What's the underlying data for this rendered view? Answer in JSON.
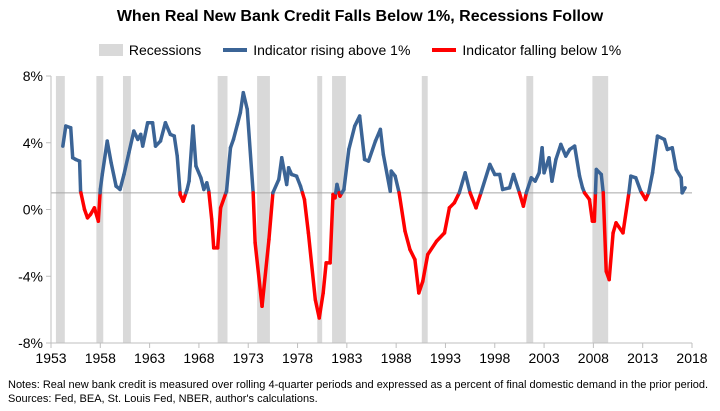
{
  "chart_data": {
    "type": "line",
    "title": "When Real New Bank Credit Falls Below 1%, Recessions Follow",
    "xlabel": "",
    "ylabel": "",
    "xlim": [
      1953,
      2018
    ],
    "ylim": [
      -8,
      8
    ],
    "x_ticks": [
      "1953",
      "1958",
      "1963",
      "1968",
      "1973",
      "1978",
      "1983",
      "1988",
      "1993",
      "1998",
      "2003",
      "2008",
      "2013",
      "2018"
    ],
    "y_ticks": [
      "8%",
      "4%",
      "0%",
      "-4%",
      "-8%"
    ],
    "y_tick_values": [
      8,
      4,
      0,
      -4,
      -8
    ],
    "threshold": 1,
    "grid": false,
    "legend_position": "top",
    "legend": [
      "Recessions",
      "Indicator rising above 1%",
      "Indicator falling below 1%"
    ],
    "colors": {
      "rising": "#3b6496",
      "falling": "#ff0000",
      "recession": "#d9d9d9"
    },
    "recessions": [
      [
        1953.5,
        1954.4
      ],
      [
        1957.6,
        1958.3
      ],
      [
        1960.3,
        1961.1
      ],
      [
        1969.9,
        1970.9
      ],
      [
        1973.9,
        1975.2
      ],
      [
        1980.0,
        1980.5
      ],
      [
        1981.5,
        1982.9
      ],
      [
        1990.6,
        1991.2
      ],
      [
        2001.2,
        2001.9
      ],
      [
        2007.9,
        2009.5
      ]
    ],
    "series": [
      [
        1954.2,
        3.8
      ],
      [
        1954.5,
        5.0
      ],
      [
        1955.0,
        4.9
      ],
      [
        1955.2,
        3.1
      ],
      [
        1955.5,
        3.0
      ],
      [
        1955.9,
        2.9
      ],
      [
        1956.0,
        1.1
      ],
      [
        1956.4,
        0.0
      ],
      [
        1956.7,
        -0.5
      ],
      [
        1957.0,
        -0.3
      ],
      [
        1957.4,
        0.1
      ],
      [
        1957.8,
        -0.7
      ],
      [
        1958.0,
        1.2
      ],
      [
        1958.2,
        2.1
      ],
      [
        1958.7,
        4.1
      ],
      [
        1959.1,
        2.8
      ],
      [
        1959.6,
        1.4
      ],
      [
        1960.0,
        1.2
      ],
      [
        1960.4,
        2.1
      ],
      [
        1960.9,
        3.4
      ],
      [
        1961.4,
        4.7
      ],
      [
        1961.8,
        4.2
      ],
      [
        1962.1,
        4.5
      ],
      [
        1962.3,
        3.8
      ],
      [
        1962.8,
        5.2
      ],
      [
        1963.3,
        5.2
      ],
      [
        1963.6,
        3.8
      ],
      [
        1964.1,
        4.1
      ],
      [
        1964.6,
        5.2
      ],
      [
        1965.1,
        4.5
      ],
      [
        1965.5,
        4.4
      ],
      [
        1965.8,
        3.2
      ],
      [
        1966.1,
        0.9
      ],
      [
        1966.4,
        0.5
      ],
      [
        1966.8,
        1.2
      ],
      [
        1967.0,
        1.7
      ],
      [
        1967.4,
        5.0
      ],
      [
        1967.7,
        2.6
      ],
      [
        1968.2,
        1.9
      ],
      [
        1968.5,
        1.2
      ],
      [
        1968.8,
        1.6
      ],
      [
        1969.0,
        1.1
      ],
      [
        1969.3,
        -0.6
      ],
      [
        1969.5,
        -2.3
      ],
      [
        1969.9,
        -2.3
      ],
      [
        1970.2,
        0.1
      ],
      [
        1970.8,
        1.1
      ],
      [
        1971.2,
        3.7
      ],
      [
        1971.5,
        4.2
      ],
      [
        1971.9,
        5.1
      ],
      [
        1972.2,
        5.8
      ],
      [
        1972.5,
        7.0
      ],
      [
        1972.9,
        6.0
      ],
      [
        1973.5,
        1.0
      ],
      [
        1973.7,
        -2.0
      ],
      [
        1974.4,
        -5.8
      ],
      [
        1975.1,
        -1.8
      ],
      [
        1975.5,
        1.0
      ],
      [
        1976.1,
        1.8
      ],
      [
        1976.4,
        3.1
      ],
      [
        1976.9,
        1.5
      ],
      [
        1977.1,
        2.5
      ],
      [
        1977.4,
        2.1
      ],
      [
        1977.9,
        2.0
      ],
      [
        1978.3,
        1.4
      ],
      [
        1978.7,
        0.6
      ],
      [
        1979.1,
        -1.4
      ],
      [
        1979.8,
        -5.4
      ],
      [
        1980.2,
        -6.5
      ],
      [
        1980.6,
        -5.0
      ],
      [
        1980.9,
        -3.2
      ],
      [
        1981.3,
        -3.2
      ],
      [
        1981.6,
        0.9
      ],
      [
        1981.8,
        0.7
      ],
      [
        1982.0,
        1.5
      ],
      [
        1982.3,
        0.8
      ],
      [
        1982.7,
        1.2
      ],
      [
        1983.2,
        3.6
      ],
      [
        1983.8,
        5.0
      ],
      [
        1984.3,
        5.6
      ],
      [
        1984.8,
        3.0
      ],
      [
        1985.2,
        2.9
      ],
      [
        1985.9,
        4.1
      ],
      [
        1986.4,
        4.8
      ],
      [
        1986.7,
        3.3
      ],
      [
        1987.4,
        1.1
      ],
      [
        1987.5,
        2.3
      ],
      [
        1987.9,
        2.0
      ],
      [
        1988.3,
        1.0
      ],
      [
        1988.9,
        -1.3
      ],
      [
        1989.4,
        -2.4
      ],
      [
        1989.9,
        -3.0
      ],
      [
        1990.3,
        -5.0
      ],
      [
        1990.7,
        -4.3
      ],
      [
        1991.2,
        -2.7
      ],
      [
        1992.1,
        -1.9
      ],
      [
        1992.9,
        -1.4
      ],
      [
        1993.4,
        0.1
      ],
      [
        1993.9,
        0.4
      ],
      [
        1994.4,
        1.0
      ],
      [
        1995.0,
        2.2
      ],
      [
        1995.5,
        1.0
      ],
      [
        1996.1,
        0.1
      ],
      [
        1996.6,
        1.0
      ],
      [
        1997.5,
        2.7
      ],
      [
        1998.0,
        2.1
      ],
      [
        1998.5,
        2.1
      ],
      [
        1998.8,
        1.2
      ],
      [
        1999.5,
        1.3
      ],
      [
        1999.9,
        2.1
      ],
      [
        2000.5,
        1.0
      ],
      [
        2000.9,
        0.2
      ],
      [
        2001.2,
        1.0
      ],
      [
        2001.7,
        1.9
      ],
      [
        2002.1,
        1.7
      ],
      [
        2002.5,
        2.2
      ],
      [
        2002.8,
        3.7
      ],
      [
        2003.0,
        2.2
      ],
      [
        2003.5,
        3.1
      ],
      [
        2003.8,
        1.7
      ],
      [
        2004.2,
        3.0
      ],
      [
        2004.7,
        3.9
      ],
      [
        2005.2,
        3.2
      ],
      [
        2005.6,
        3.6
      ],
      [
        2006.1,
        3.8
      ],
      [
        2006.6,
        2.0
      ],
      [
        2006.9,
        1.3
      ],
      [
        2007.1,
        1.0
      ],
      [
        2007.6,
        0.6
      ],
      [
        2007.9,
        -0.7
      ],
      [
        2008.1,
        -0.7
      ],
      [
        2008.3,
        2.4
      ],
      [
        2008.8,
        2.1
      ],
      [
        2009.0,
        1.0
      ],
      [
        2009.3,
        -3.7
      ],
      [
        2009.6,
        -4.2
      ],
      [
        2010.0,
        -1.4
      ],
      [
        2010.3,
        -0.8
      ],
      [
        2011.0,
        -1.4
      ],
      [
        2011.6,
        1.0
      ],
      [
        2011.8,
        2.0
      ],
      [
        2012.3,
        1.9
      ],
      [
        2012.8,
        1.1
      ],
      [
        2013.3,
        0.6
      ],
      [
        2013.6,
        1.0
      ],
      [
        2014.0,
        2.2
      ],
      [
        2014.5,
        4.4
      ],
      [
        2015.2,
        4.2
      ],
      [
        2015.5,
        3.6
      ],
      [
        2016.0,
        3.7
      ],
      [
        2016.4,
        2.4
      ],
      [
        2016.9,
        1.9
      ],
      [
        2017.0,
        1.0
      ],
      [
        2017.3,
        1.3
      ]
    ]
  },
  "notes": "Notes: Real new bank credit is measured over rolling 4-quarter periods and expressed as a percent of final domestic demand in the prior period. Sources: Fed, BEA, St. Louis Fed, NBER, author's calculations."
}
